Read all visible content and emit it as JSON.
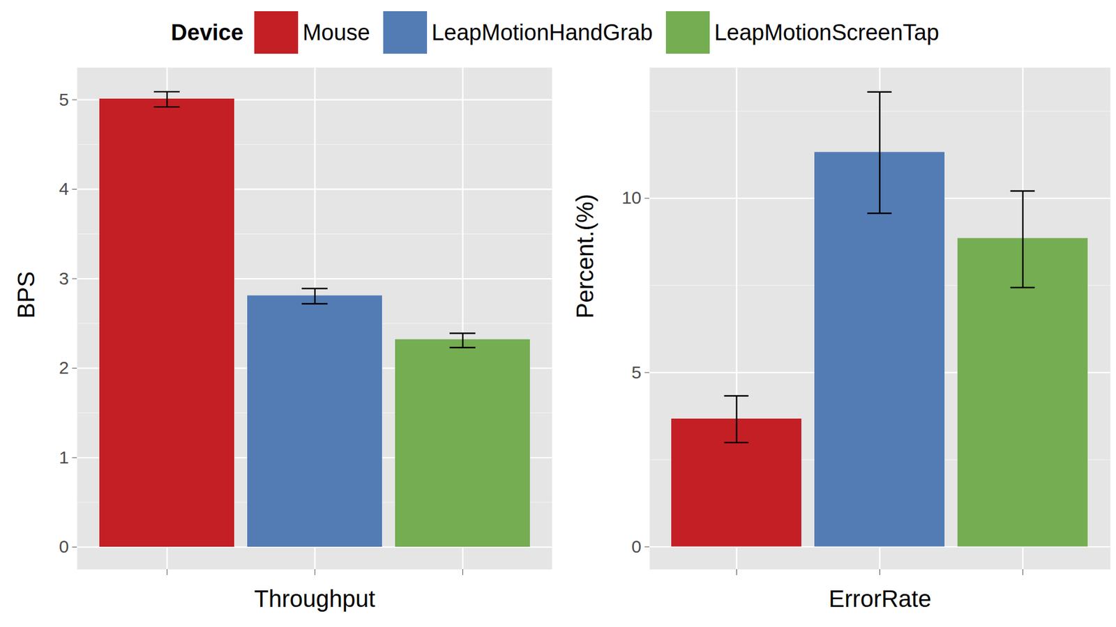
{
  "chart_data": [
    {
      "type": "bar",
      "x_label": "Throughput",
      "y_label": "BPS",
      "legend": "top",
      "legend_title": "Device",
      "categories": [
        "Mouse",
        "LeapMotionHandGrab",
        "LeapMotionScreenTap"
      ],
      "values": [
        5.01,
        2.81,
        2.32
      ],
      "error_low": [
        4.92,
        2.72,
        2.23
      ],
      "error_high": [
        5.09,
        2.89,
        2.39
      ],
      "colors": [
        "#C41F24",
        "#537CB5",
        "#75AD52"
      ],
      "ylim": [
        -0.25,
        5.36
      ],
      "yticks": [
        0,
        1,
        2,
        3,
        4,
        5
      ],
      "grid": true,
      "tick_labels": "y"
    },
    {
      "type": "bar",
      "x_label": "ErrorRate",
      "y_label": "Percent.(%)",
      "categories": [
        "Mouse",
        "LeapMotionHandGrab",
        "LeapMotionScreenTap"
      ],
      "values": [
        3.67,
        11.32,
        8.85
      ],
      "error_low": [
        2.99,
        9.57,
        7.44
      ],
      "error_high": [
        4.33,
        13.05,
        10.21
      ],
      "colors": [
        "#C41F24",
        "#537CB5",
        "#75AD52"
      ],
      "ylim": [
        -0.65,
        13.75
      ],
      "yticks": [
        0,
        5,
        10
      ],
      "grid": true,
      "tick_labels": "y"
    }
  ]
}
